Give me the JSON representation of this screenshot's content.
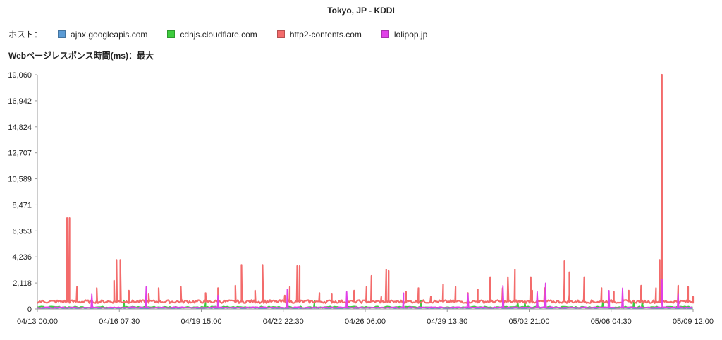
{
  "title": "Tokyo, JP - KDDI",
  "legend": {
    "label": "ホスト：",
    "items": [
      {
        "name": "ajax.googleapis.com",
        "color": "#5b9bd5"
      },
      {
        "name": "cdnjs.cloudflare.com",
        "color": "#3dcc3d"
      },
      {
        "name": "http2-contents.com",
        "color": "#f36b6b"
      },
      {
        "name": "lolipop.jp",
        "color": "#e040e8"
      }
    ]
  },
  "metric_label": "Webページレスポンス時間(ms)：最大",
  "chart_data": {
    "type": "line",
    "title": "Tokyo, JP - KDDI",
    "ylabel": "Webページレスポンス時間(ms)：最大",
    "ylim": [
      0,
      19060
    ],
    "y_ticks": [
      "0",
      "2,118",
      "4,236",
      "6,353",
      "8,471",
      "10,589",
      "12,707",
      "14,824",
      "16,942",
      "19,060"
    ],
    "x_ticks": [
      "04/13 00:00",
      "04/16 07:30",
      "04/19 15:00",
      "04/22 22:30",
      "04/26 06:00",
      "04/29 13:30",
      "05/02 21:00",
      "05/06 04:30",
      "05/09 12:00"
    ],
    "x_range_days": [
      0,
      26.5
    ],
    "series": [
      {
        "name": "http2-contents.com",
        "color": "#f36b6b",
        "baseline": 600,
        "points": [
          [
            0,
            600
          ],
          [
            0.3,
            700
          ],
          [
            0.6,
            650
          ],
          [
            0.9,
            800
          ],
          [
            1.2,
            7400
          ],
          [
            1.25,
            700
          ],
          [
            1.6,
            1800
          ],
          [
            2,
            700
          ],
          [
            2.4,
            1700
          ],
          [
            2.8,
            750
          ],
          [
            3.1,
            2300
          ],
          [
            3.2,
            4000
          ],
          [
            3.3,
            800
          ],
          [
            3.7,
            1500
          ],
          [
            4.1,
            900
          ],
          [
            4.5,
            1200
          ],
          [
            4.9,
            1700
          ],
          [
            5.3,
            700
          ],
          [
            5.8,
            1800
          ],
          [
            6.2,
            700
          ],
          [
            6.8,
            1300
          ],
          [
            7.3,
            1700
          ],
          [
            7.6,
            800
          ],
          [
            8,
            1900
          ],
          [
            8.25,
            3600
          ],
          [
            8.35,
            800
          ],
          [
            8.8,
            1500
          ],
          [
            9.4,
            700
          ],
          [
            10,
            1100
          ],
          [
            10.2,
            1800
          ],
          [
            10.5,
            3300
          ],
          [
            10.6,
            3500
          ],
          [
            10.8,
            900
          ],
          [
            11.4,
            1300
          ],
          [
            11.9,
            1200
          ],
          [
            12.3,
            900
          ],
          [
            12.8,
            1500
          ],
          [
            13.3,
            1800
          ],
          [
            13.5,
            2700
          ],
          [
            13.9,
            1000
          ],
          [
            14.2,
            3100
          ],
          [
            14.4,
            900
          ],
          [
            14.9,
            1400
          ],
          [
            15.4,
            1700
          ],
          [
            15.9,
            1000
          ],
          [
            16.4,
            2000
          ],
          [
            16.9,
            1800
          ],
          [
            17.4,
            1300
          ],
          [
            17.8,
            1600
          ],
          [
            18.3,
            2600
          ],
          [
            18.8,
            1700
          ],
          [
            19.3,
            3200
          ],
          [
            19.5,
            800
          ],
          [
            20,
            1500
          ],
          [
            20.5,
            1700
          ],
          [
            20.9,
            900
          ],
          [
            21.3,
            2600
          ],
          [
            21.5,
            1200
          ],
          [
            22.1,
            2600
          ],
          [
            22.3,
            900
          ],
          [
            22.8,
            1700
          ],
          [
            23.3,
            1400
          ],
          [
            23.9,
            1500
          ],
          [
            24.4,
            1900
          ],
          [
            24.6,
            900
          ],
          [
            25,
            1700
          ],
          [
            25.15,
            4000
          ],
          [
            25.4,
            900
          ],
          [
            25.9,
            1900
          ],
          [
            26.3,
            1800
          ],
          [
            26.5,
            1000
          ]
        ],
        "spikes": [
          [
            1.3,
            7400
          ],
          [
            3.35,
            4000
          ],
          [
            9.1,
            3600
          ],
          [
            10.5,
            3500
          ],
          [
            14.1,
            3200
          ],
          [
            18.3,
            2600
          ],
          [
            21.3,
            3900
          ],
          [
            28.7,
            2600
          ],
          [
            30.1,
            2600
          ],
          [
            21.5,
            3000
          ],
          [
            38.1,
            19060
          ]
        ]
      },
      {
        "name": "lolipop.jp",
        "color": "#e040e8",
        "baseline": 120,
        "spikes": [
          [
            2.2,
            1200
          ],
          [
            4.4,
            1800
          ],
          [
            7.3,
            1100
          ],
          [
            10.1,
            1600
          ],
          [
            12.5,
            1400
          ],
          [
            14.8,
            1300
          ],
          [
            17.4,
            1200
          ],
          [
            20.2,
            1400
          ],
          [
            23.1,
            1500
          ],
          [
            25.9,
            1200
          ],
          [
            28.4,
            1900
          ],
          [
            31,
            2100
          ],
          [
            35.7,
            1700
          ],
          [
            38.1,
            2400
          ]
        ]
      },
      {
        "name": "cdnjs.cloudflare.com",
        "color": "#3dcc3d",
        "baseline": 150,
        "spikes": [
          [
            3.5,
            700
          ],
          [
            6.8,
            600
          ],
          [
            11.2,
            650
          ],
          [
            15.5,
            700
          ],
          [
            19.7,
            600
          ],
          [
            24.1,
            650
          ],
          [
            29.3,
            600
          ],
          [
            34.5,
            700
          ],
          [
            36.9,
            650
          ]
        ]
      },
      {
        "name": "ajax.googleapis.com",
        "color": "#5b9bd5",
        "baseline": 90,
        "spikes": []
      }
    ]
  }
}
